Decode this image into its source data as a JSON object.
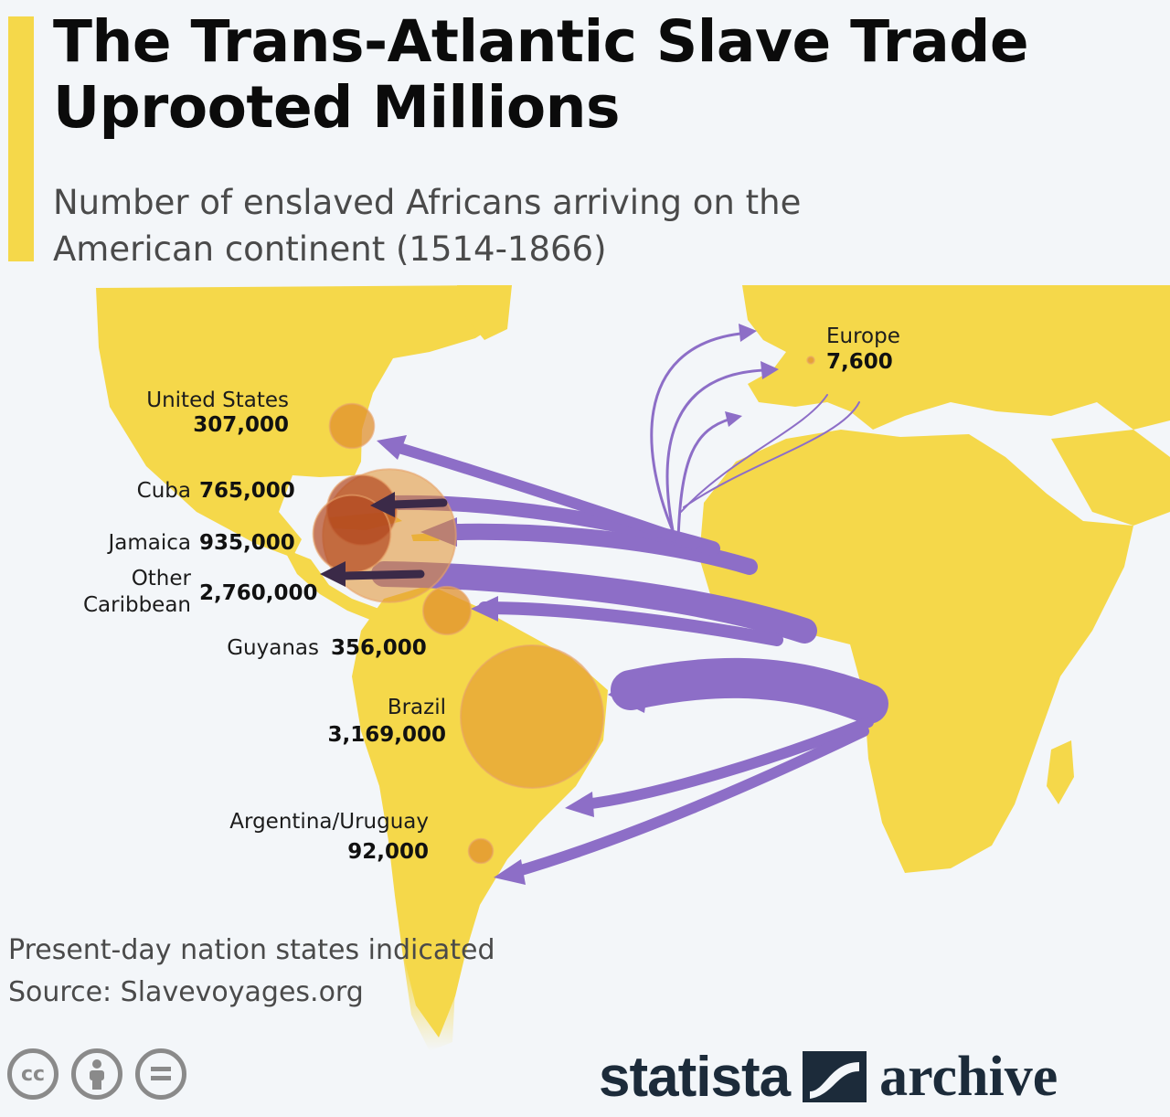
{
  "title": "The Trans-Atlantic Slave Trade Uprooted Millions",
  "subtitle": "Number of enslaved Africans arriving on the American continent (1514-1866)",
  "destinations": [
    {
      "label": "United States",
      "value": "307,000",
      "amount": 307000
    },
    {
      "label": "Cuba",
      "value": "765,000",
      "amount": 765000
    },
    {
      "label": "Jamaica",
      "value": "935,000",
      "amount": 935000
    },
    {
      "label_lines": [
        "Other",
        "Caribbean"
      ],
      "value": "2,760,000",
      "amount": 2760000
    },
    {
      "label": "Guyanas",
      "value": "356,000",
      "amount": 356000
    },
    {
      "label": "Brazil",
      "value": "3,169,000",
      "amount": 3169000
    },
    {
      "label": "Argentina/Uruguay",
      "value": "92,000",
      "amount": 92000
    },
    {
      "label": "Europe",
      "value": "7,600",
      "amount": 7600
    }
  ],
  "notes": {
    "line1": "Present-day nation states indicated",
    "line2": "Source: Slavevoyages.org"
  },
  "branding": {
    "word1": "statista",
    "word2": "archive"
  },
  "license_icons": [
    "cc-icon",
    "attribution-icon",
    "no-derivatives-icon"
  ],
  "colors": {
    "accent": "#f5d84a",
    "land": "#f5d84a",
    "flow": "#8d6ec7",
    "bubble": "#e0902e",
    "background": "#f3f6f9"
  }
}
